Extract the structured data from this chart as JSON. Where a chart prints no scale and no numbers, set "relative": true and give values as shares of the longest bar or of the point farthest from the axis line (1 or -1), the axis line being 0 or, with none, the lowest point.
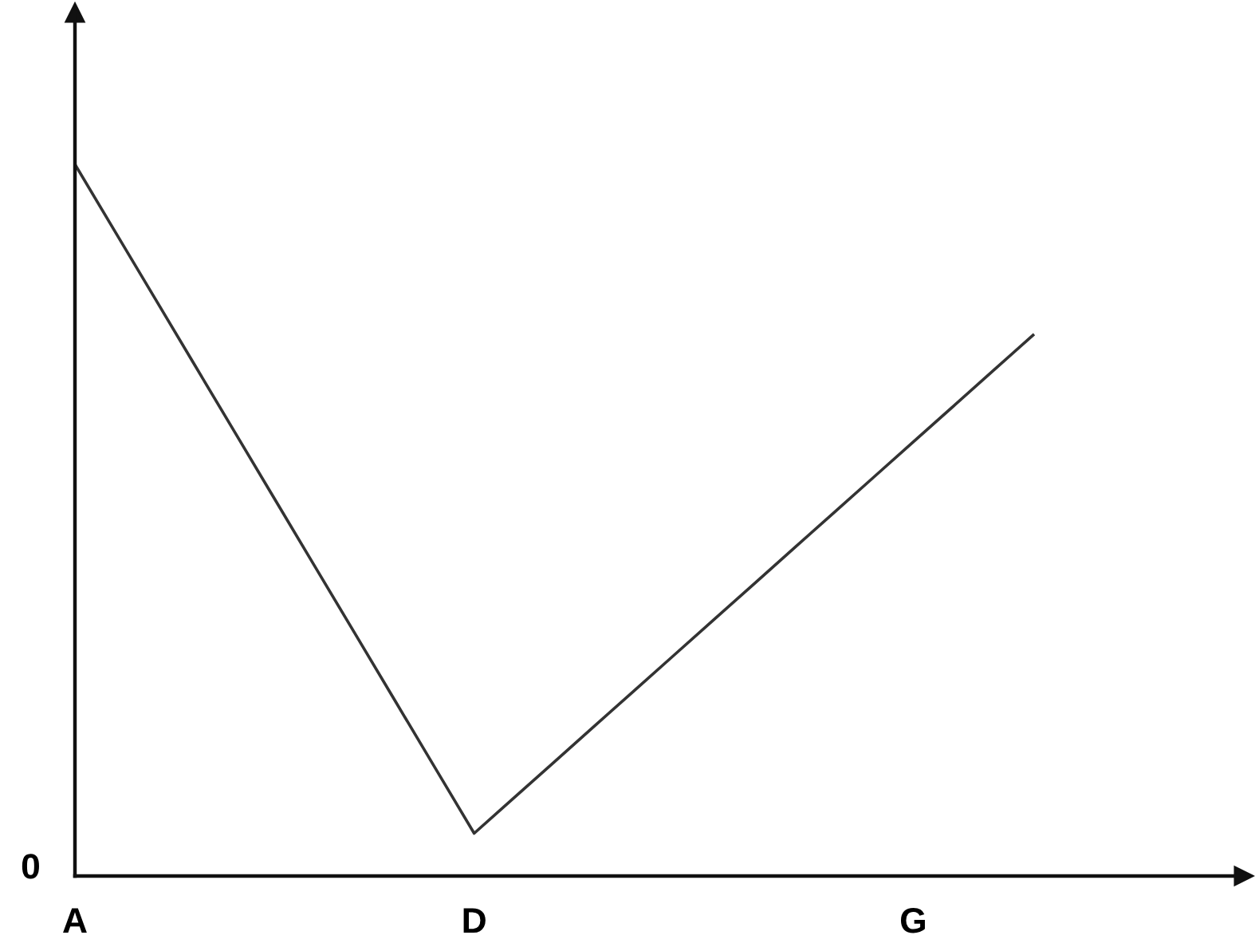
{
  "chart_data": {
    "type": "line",
    "relative": true,
    "color": "#333333",
    "categories": [
      "A",
      null,
      null,
      null,
      null,
      null,
      null,
      null,
      null,
      null,
      "D",
      null,
      null,
      null,
      null,
      null,
      null,
      null,
      null,
      null,
      null,
      "G",
      null,
      null,
      null
    ],
    "values": [
      1,
      0.906,
      0.812,
      0.718,
      0.624,
      0.53,
      0.436,
      0.342,
      0.248,
      0.154,
      0.06,
      0.11,
      0.16,
      0.21,
      0.26,
      0.31,
      0.36,
      0.41,
      0.46,
      0.51,
      0.56,
      0.61,
      0.66,
      0.71,
      0.76
    ],
    "tick_labels": "x",
    "annotations": [
      "0"
    ]
  }
}
